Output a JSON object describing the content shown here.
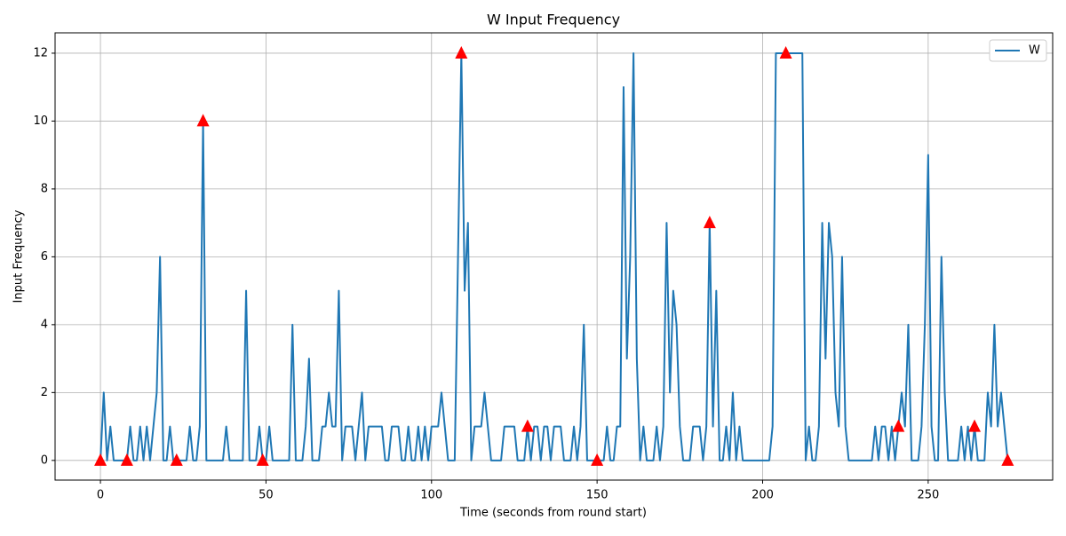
{
  "chart_data": {
    "type": "line",
    "title": "W Input Frequency",
    "x_label": "Time (seconds from round start)",
    "y_label": "Input Frequency",
    "x": [
      0,
      1,
      2,
      3,
      4,
      5,
      6,
      7,
      8,
      9,
      10,
      11,
      12,
      13,
      14,
      15,
      16,
      17,
      18,
      19,
      20,
      21,
      22,
      23,
      24,
      25,
      26,
      27,
      28,
      29,
      30,
      31,
      32,
      33,
      34,
      35,
      36,
      37,
      38,
      39,
      40,
      41,
      42,
      43,
      44,
      45,
      46,
      47,
      48,
      49,
      50,
      51,
      52,
      53,
      54,
      55,
      56,
      57,
      58,
      59,
      60,
      61,
      62,
      63,
      64,
      65,
      66,
      67,
      68,
      69,
      70,
      71,
      72,
      73,
      74,
      75,
      76,
      77,
      78,
      79,
      80,
      81,
      82,
      83,
      84,
      85,
      86,
      87,
      88,
      89,
      90,
      91,
      92,
      93,
      94,
      95,
      96,
      97,
      98,
      99,
      100,
      101,
      102,
      103,
      104,
      105,
      106,
      107,
      108,
      109,
      110,
      111,
      112,
      113,
      114,
      115,
      116,
      117,
      118,
      119,
      120,
      121,
      122,
      123,
      124,
      125,
      126,
      127,
      128,
      129,
      130,
      131,
      132,
      133,
      134,
      135,
      136,
      137,
      138,
      139,
      140,
      141,
      142,
      143,
      144,
      145,
      146,
      147,
      148,
      149,
      150,
      151,
      152,
      153,
      154,
      155,
      156,
      157,
      158,
      159,
      160,
      161,
      162,
      163,
      164,
      165,
      166,
      167,
      168,
      169,
      170,
      171,
      172,
      173,
      174,
      175,
      176,
      177,
      178,
      179,
      180,
      181,
      182,
      183,
      184,
      185,
      186,
      187,
      188,
      189,
      190,
      191,
      192,
      193,
      194,
      195,
      196,
      197,
      198,
      199,
      200,
      201,
      202,
      203,
      204,
      205,
      206,
      207,
      208,
      209,
      210,
      211,
      212,
      213,
      214,
      215,
      216,
      217,
      218,
      219,
      220,
      221,
      222,
      223,
      224,
      225,
      226,
      227,
      228,
      229,
      230,
      231,
      232,
      233,
      234,
      235,
      236,
      237,
      238,
      239,
      240,
      241,
      242,
      243,
      244,
      245,
      246,
      247,
      248,
      249,
      250,
      251,
      252,
      253,
      254,
      255,
      256,
      257,
      258,
      259,
      260,
      261,
      262,
      263,
      264,
      265,
      266,
      267,
      268,
      269,
      270,
      271,
      272,
      273,
      274
    ],
    "series": [
      {
        "name": "W",
        "color": "#1f77b4",
        "values": [
          0,
          2,
          0,
          1,
          0,
          0,
          0,
          0,
          0,
          1,
          0,
          0,
          1,
          0,
          1,
          0,
          1,
          2,
          6,
          0,
          0,
          1,
          0,
          0,
          0,
          0,
          0,
          1,
          0,
          0,
          1,
          10,
          0,
          0,
          0,
          0,
          0,
          0,
          1,
          0,
          0,
          0,
          0,
          0,
          5,
          0,
          0,
          0,
          1,
          0,
          0,
          1,
          0,
          0,
          0,
          0,
          0,
          0,
          4,
          0,
          0,
          0,
          1,
          3,
          0,
          0,
          0,
          1,
          1,
          2,
          1,
          1,
          5,
          0,
          1,
          1,
          1,
          0,
          1,
          2,
          0,
          1,
          1,
          1,
          1,
          1,
          0,
          0,
          1,
          1,
          1,
          0,
          0,
          1,
          0,
          0,
          1,
          0,
          1,
          0,
          1,
          1,
          1,
          2,
          1,
          0,
          0,
          0,
          6,
          12,
          5,
          7,
          0,
          1,
          1,
          1,
          2,
          1,
          0,
          0,
          0,
          0,
          1,
          1,
          1,
          1,
          0,
          0,
          0,
          1,
          0,
          1,
          1,
          0,
          1,
          1,
          0,
          1,
          1,
          1,
          0,
          0,
          0,
          1,
          0,
          1,
          4,
          0,
          0,
          0,
          0,
          0,
          0,
          1,
          0,
          0,
          1,
          1,
          11,
          3,
          6,
          12,
          3,
          0,
          1,
          0,
          0,
          0,
          1,
          0,
          1,
          7,
          2,
          5,
          4,
          1,
          0,
          0,
          0,
          1,
          1,
          1,
          0,
          1,
          7,
          1,
          5,
          0,
          0,
          1,
          0,
          2,
          0,
          1,
          0,
          0,
          0,
          0,
          0,
          0,
          0,
          0,
          0,
          1,
          12,
          12,
          12,
          12,
          12,
          12,
          12,
          12,
          12,
          0,
          1,
          0,
          0,
          1,
          7,
          3,
          7,
          6,
          2,
          1,
          6,
          1,
          0,
          0,
          0,
          0,
          0,
          0,
          0,
          0,
          1,
          0,
          1,
          1,
          0,
          1,
          0,
          1,
          2,
          1,
          4,
          0,
          0,
          0,
          1,
          4,
          9,
          1,
          0,
          0,
          6,
          2,
          0,
          0,
          0,
          0,
          1,
          0,
          1,
          0,
          1,
          0,
          0,
          0,
          2,
          1,
          4,
          1,
          2,
          1,
          0
        ]
      }
    ],
    "markers": {
      "color": "#ff0000",
      "x": [
        0,
        8,
        23,
        31,
        49,
        109,
        129,
        150,
        184,
        207,
        241,
        264,
        274
      ],
      "values": [
        0,
        0,
        0,
        10,
        0,
        12,
        1,
        0,
        7,
        12,
        1,
        1,
        0
      ]
    },
    "xlim": [
      -13.7,
      287.6
    ],
    "ylim": [
      -0.58,
      12.6
    ],
    "xticks": [
      0,
      50,
      100,
      150,
      200,
      250
    ],
    "yticks": [
      0,
      2,
      4,
      6,
      8,
      10,
      12
    ],
    "grid": true,
    "legend": "upper right"
  }
}
